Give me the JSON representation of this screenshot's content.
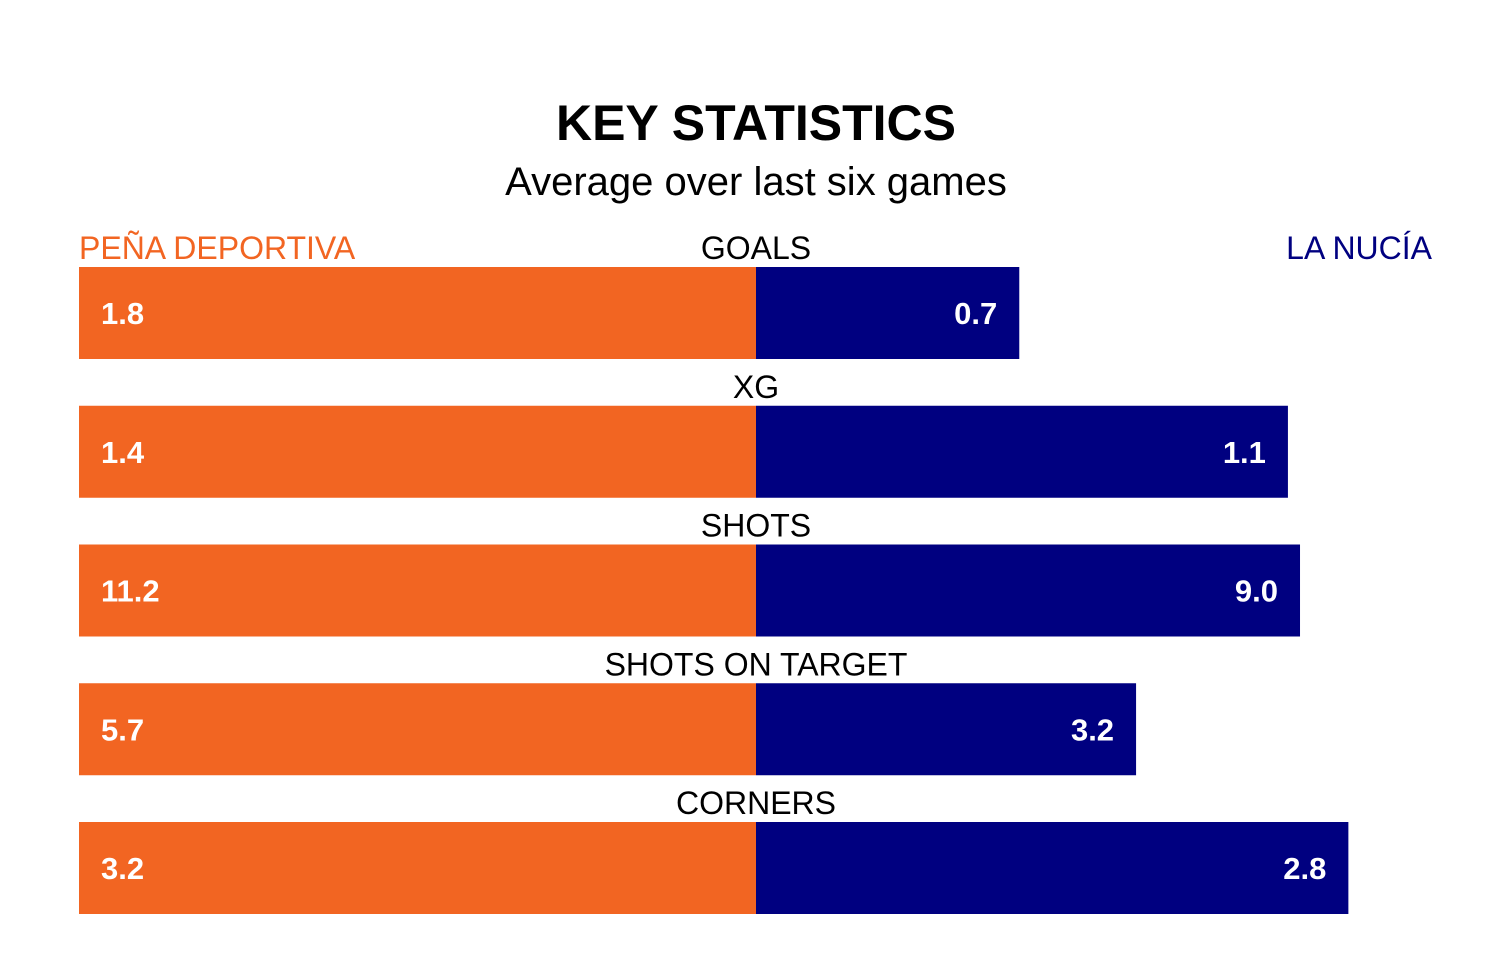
{
  "chart_data": {
    "type": "bar",
    "title": "KEY STATISTICS",
    "subtitle": "Average over last six games",
    "categories": [
      "GOALS",
      "XG",
      "SHOTS",
      "SHOTS ON TARGET",
      "CORNERS"
    ],
    "series": [
      {
        "name": "PEÑA DEPORTIVA",
        "color": "#f26522",
        "values": [
          1.8,
          1.4,
          11.2,
          5.7,
          3.2
        ],
        "labels": [
          "1.8",
          "1.4",
          "11.2",
          "5.7",
          "3.2"
        ],
        "label_color": "#ffffff"
      },
      {
        "name": "LA NUCÍA",
        "color": "#000080",
        "values": [
          0.7,
          1.1,
          9.0,
          3.2,
          2.8
        ],
        "labels": [
          "0.7",
          "1.1",
          "9.0",
          "3.2",
          "2.8"
        ],
        "label_color": "#ffffff",
        "outside_label_color": "#000000"
      }
    ]
  }
}
